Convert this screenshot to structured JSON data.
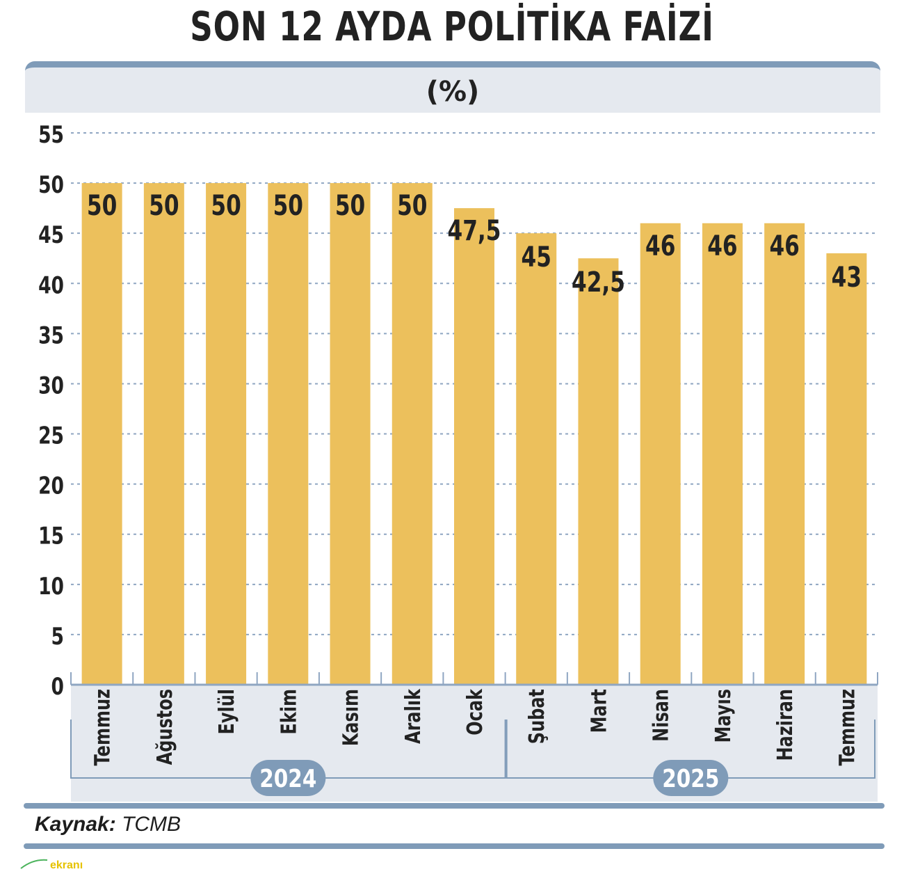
{
  "title": "SON 12 AYDA POLİTİKA FAİZİ",
  "unit_label": "(%)",
  "source": {
    "label": "Kaynak:",
    "value": "TCMB"
  },
  "watermark": "ekranı",
  "colors": {
    "bar": "#ecc05c",
    "frame": "#7f9bb8",
    "band": "#e5e9ef",
    "grid": "#8fa6c2",
    "year_badge": "#7f9bb8"
  },
  "chart_data": {
    "type": "bar",
    "categories": [
      "Temmuz",
      "Ağustos",
      "Eylül",
      "Ekim",
      "Kasım",
      "Aralık",
      "Ocak",
      "Şubat",
      "Mart",
      "Nisan",
      "Mayıs",
      "Haziran",
      "Temmuz"
    ],
    "values": [
      50,
      50,
      50,
      50,
      50,
      50,
      47.5,
      45,
      42.5,
      46,
      46,
      46,
      43
    ],
    "value_labels": [
      "50",
      "50",
      "50",
      "50",
      "50",
      "50",
      "47,5",
      "45",
      "42,5",
      "46",
      "46",
      "46",
      "43"
    ],
    "year_groups": [
      {
        "label": "2024",
        "from": 0,
        "to": 6
      },
      {
        "label": "2025",
        "from": 7,
        "to": 12
      }
    ],
    "ylim": [
      0,
      55
    ],
    "yticks": [
      0,
      5,
      10,
      15,
      20,
      25,
      30,
      35,
      40,
      45,
      50,
      55
    ],
    "grid": true
  }
}
